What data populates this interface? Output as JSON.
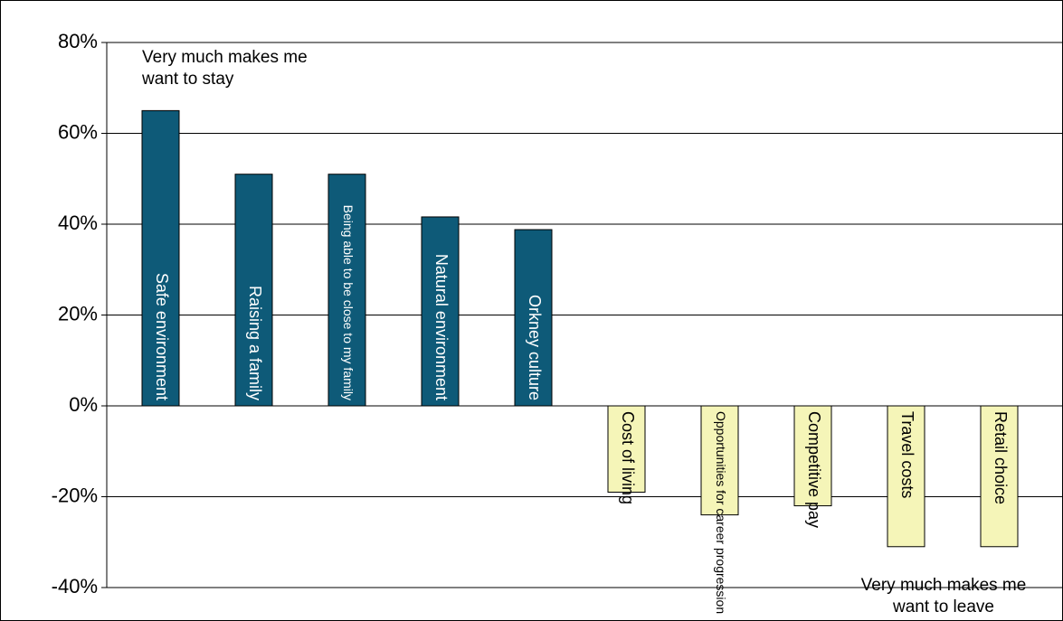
{
  "chart_data": {
    "type": "bar",
    "categories": [
      "Safe environment",
      "Raising a family",
      "Being able to be close to my family",
      "Natural environment",
      "Orkney culture",
      "Cost of living",
      "Opportunities for career progression",
      "Competitive pay",
      "Travel costs",
      "Retail choice"
    ],
    "values": [
      65,
      51,
      51,
      41.6,
      38.8,
      -19,
      -24,
      -22,
      -31,
      -31
    ],
    "colors": [
      "#0e5a78",
      "#0e5a78",
      "#0e5a78",
      "#0e5a78",
      "#0e5a78",
      "#f5f5b8",
      "#f5f5b8",
      "#f5f5b8",
      "#f5f5b8",
      "#f5f5b8"
    ],
    "ylim": [
      -40,
      80
    ],
    "yticks": [
      {
        "value": -40,
        "label": "-40%"
      },
      {
        "value": -20,
        "label": "-20%"
      },
      {
        "value": 0,
        "label": "0%"
      },
      {
        "value": 20,
        "label": "20%"
      },
      {
        "value": 40,
        "label": "40%"
      },
      {
        "value": 60,
        "label": "60%"
      },
      {
        "value": 80,
        "label": "80%"
      }
    ],
    "grid": true,
    "annotations": [
      "Very much makes me want to stay",
      "Very much makes me want to leave"
    ]
  }
}
